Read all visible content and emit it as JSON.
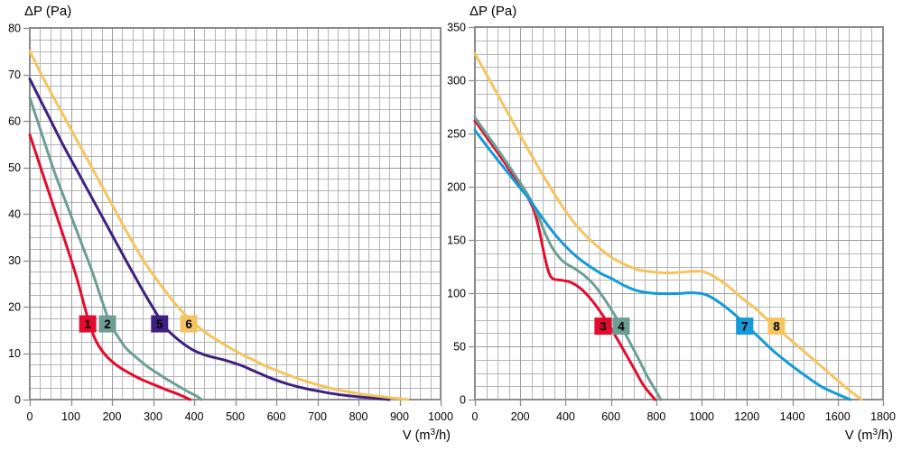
{
  "page": {
    "background": "#ffffff"
  },
  "colors": {
    "grid_minor": "#b5b5b5",
    "grid_major": "#9c9c9c",
    "axis_border": "#8c8c8c",
    "tick": "#8c8c8c",
    "text": "#000000",
    "marker_text": "#ffffff"
  },
  "chart_data": [
    {
      "type": "line",
      "title": "ΔP (Pa)",
      "xlabel": "V (m³/h)",
      "ylabel": "ΔP (Pa)",
      "xlim": [
        0,
        1000
      ],
      "ylim": [
        0,
        80
      ],
      "x_major_step": 100,
      "x_minor_step": 25,
      "y_major_step": 10,
      "y_minor_step": 2.5,
      "x_ticks": [
        0,
        100,
        200,
        300,
        400,
        500,
        600,
        700,
        800,
        900,
        1000
      ],
      "y_ticks": [
        0,
        10,
        20,
        30,
        40,
        50,
        60,
        70,
        80
      ],
      "grid": "on",
      "legend": "numbered boxes on curves",
      "series": [
        {
          "name": "1",
          "color": "#e30b2e",
          "label_pos": [
            141,
            16.3
          ],
          "points": [
            [
              0,
              57
            ],
            [
              30,
              49
            ],
            [
              60,
              41
            ],
            [
              90,
              33
            ],
            [
              115,
              26
            ],
            [
              135,
              19.5
            ],
            [
              150,
              15
            ],
            [
              165,
              12
            ],
            [
              185,
              9.5
            ],
            [
              210,
              7.5
            ],
            [
              240,
              5.8
            ],
            [
              270,
              4.4
            ],
            [
              300,
              3.3
            ],
            [
              330,
              2.2
            ],
            [
              360,
              1.2
            ],
            [
              390,
              0
            ]
          ]
        },
        {
          "name": "2",
          "color": "#6d9e94",
          "label_pos": [
            189,
            16.3
          ],
          "points": [
            [
              0,
              65
            ],
            [
              30,
              57
            ],
            [
              60,
              49
            ],
            [
              90,
              42
            ],
            [
              120,
              35
            ],
            [
              150,
              28
            ],
            [
              175,
              21.5
            ],
            [
              195,
              16.5
            ],
            [
              215,
              13.5
            ],
            [
              235,
              11
            ],
            [
              260,
              9
            ],
            [
              285,
              7.2
            ],
            [
              310,
              5.7
            ],
            [
              335,
              4.3
            ],
            [
              360,
              3
            ],
            [
              385,
              1.7
            ],
            [
              405,
              0.8
            ],
            [
              418,
              0
            ]
          ]
        },
        {
          "name": "5",
          "color": "#3d2080",
          "label_pos": [
            316,
            16.3
          ],
          "points": [
            [
              0,
              69
            ],
            [
              40,
              62
            ],
            [
              80,
              55
            ],
            [
              120,
              48.5
            ],
            [
              160,
              42
            ],
            [
              200,
              35.5
            ],
            [
              240,
              29
            ],
            [
              275,
              23.5
            ],
            [
              305,
              19
            ],
            [
              330,
              15.5
            ],
            [
              360,
              13
            ],
            [
              395,
              10.8
            ],
            [
              430,
              9.5
            ],
            [
              470,
              8.6
            ],
            [
              510,
              7.5
            ],
            [
              550,
              6
            ],
            [
              590,
              4.5
            ],
            [
              630,
              3.3
            ],
            [
              670,
              2.4
            ],
            [
              710,
              1.7
            ],
            [
              750,
              1.1
            ],
            [
              800,
              0.6
            ],
            [
              840,
              0.3
            ],
            [
              875,
              0
            ]
          ]
        },
        {
          "name": "6",
          "color": "#f5c45e",
          "label_pos": [
            387,
            16.3
          ],
          "points": [
            [
              0,
              75
            ],
            [
              40,
              68
            ],
            [
              80,
              61.5
            ],
            [
              120,
              55
            ],
            [
              160,
              48.5
            ],
            [
              200,
              42
            ],
            [
              240,
              35.5
            ],
            [
              280,
              29.5
            ],
            [
              320,
              24.5
            ],
            [
              360,
              20
            ],
            [
              395,
              16.8
            ],
            [
              430,
              14.3
            ],
            [
              465,
              12.3
            ],
            [
              500,
              10.5
            ],
            [
              540,
              8.7
            ],
            [
              580,
              7
            ],
            [
              620,
              5.6
            ],
            [
              660,
              4.3
            ],
            [
              700,
              3.2
            ],
            [
              750,
              2.1
            ],
            [
              800,
              1.3
            ],
            [
              860,
              0.6
            ],
            [
              920,
              0
            ]
          ]
        }
      ]
    },
    {
      "type": "line",
      "title": "ΔP (Pa)",
      "xlabel": "V (m³/h)",
      "ylabel": "ΔP (Pa)",
      "xlim": [
        0,
        1800
      ],
      "ylim": [
        0,
        350
      ],
      "x_major_step": 200,
      "x_minor_step": 50,
      "y_major_step": 50,
      "y_minor_step": 12.5,
      "x_ticks": [
        0,
        200,
        400,
        600,
        800,
        1000,
        1200,
        1400,
        1600,
        1800
      ],
      "y_ticks": [
        0,
        50,
        100,
        150,
        200,
        250,
        300,
        350
      ],
      "grid": "on",
      "legend": "numbered boxes on curves",
      "series": [
        {
          "name": "3",
          "color": "#e30b2e",
          "label_pos": [
            565,
            69
          ],
          "points": [
            [
              0,
              262
            ],
            [
              60,
              244
            ],
            [
              120,
              226
            ],
            [
              180,
              207
            ],
            [
              230,
              191
            ],
            [
              260,
              178
            ],
            [
              285,
              158
            ],
            [
              305,
              137
            ],
            [
              325,
              120
            ],
            [
              345,
              113.5
            ],
            [
              385,
              112
            ],
            [
              425,
              110
            ],
            [
              465,
              104.5
            ],
            [
              505,
              96
            ],
            [
              545,
              85
            ],
            [
              585,
              72
            ],
            [
              625,
              58
            ],
            [
              665,
              43
            ],
            [
              705,
              28
            ],
            [
              745,
              13
            ],
            [
              795,
              0
            ]
          ]
        },
        {
          "name": "4",
          "color": "#6d9e94",
          "label_pos": [
            645,
            69
          ],
          "points": [
            [
              0,
              265
            ],
            [
              60,
              247
            ],
            [
              120,
              229
            ],
            [
              180,
              210
            ],
            [
              240,
              190
            ],
            [
              280,
              172
            ],
            [
              310,
              156
            ],
            [
              340,
              143
            ],
            [
              370,
              134
            ],
            [
              400,
              128
            ],
            [
              440,
              123
            ],
            [
              480,
              117
            ],
            [
              520,
              109
            ],
            [
              560,
              98
            ],
            [
              600,
              85
            ],
            [
              640,
              71
            ],
            [
              680,
              55
            ],
            [
              720,
              39
            ],
            [
              760,
              22
            ],
            [
              790,
              11
            ],
            [
              820,
              0
            ]
          ]
        },
        {
          "name": "7",
          "color": "#129bd8",
          "label_pos": [
            1190,
            69
          ],
          "points": [
            [
              0,
              253
            ],
            [
              60,
              236
            ],
            [
              120,
              220
            ],
            [
              180,
              204
            ],
            [
              240,
              188
            ],
            [
              300,
              170
            ],
            [
              350,
              156
            ],
            [
              400,
              144
            ],
            [
              450,
              134
            ],
            [
              500,
              126
            ],
            [
              560,
              118
            ],
            [
              600,
              114
            ],
            [
              660,
              107
            ],
            [
              720,
              102
            ],
            [
              780,
              100
            ],
            [
              840,
              99.5
            ],
            [
              900,
              99.7
            ],
            [
              960,
              100.3
            ],
            [
              1020,
              98.5
            ],
            [
              1080,
              91
            ],
            [
              1140,
              81
            ],
            [
              1200,
              69
            ],
            [
              1260,
              57
            ],
            [
              1320,
              45
            ],
            [
              1390,
              33
            ],
            [
              1460,
              22
            ],
            [
              1530,
              12
            ],
            [
              1600,
              5
            ],
            [
              1655,
              0
            ]
          ]
        },
        {
          "name": "8",
          "color": "#f5c45e",
          "label_pos": [
            1330,
            69
          ],
          "points": [
            [
              0,
              325
            ],
            [
              60,
              302
            ],
            [
              120,
              279
            ],
            [
              180,
              256
            ],
            [
              240,
              233
            ],
            [
              300,
              211
            ],
            [
              360,
              190
            ],
            [
              420,
              171
            ],
            [
              480,
              156
            ],
            [
              540,
              144
            ],
            [
              600,
              134
            ],
            [
              660,
              127
            ],
            [
              720,
              122
            ],
            [
              780,
              120
            ],
            [
              840,
              119
            ],
            [
              900,
              119.5
            ],
            [
              960,
              120.5
            ],
            [
              1010,
              120
            ],
            [
              1060,
              115
            ],
            [
              1120,
              106
            ],
            [
              1180,
              95
            ],
            [
              1240,
              85
            ],
            [
              1300,
              73
            ],
            [
              1360,
              62
            ],
            [
              1420,
              51
            ],
            [
              1480,
              40
            ],
            [
              1540,
              29
            ],
            [
              1600,
              18
            ],
            [
              1650,
              9
            ],
            [
              1705,
              0
            ]
          ]
        }
      ]
    }
  ]
}
